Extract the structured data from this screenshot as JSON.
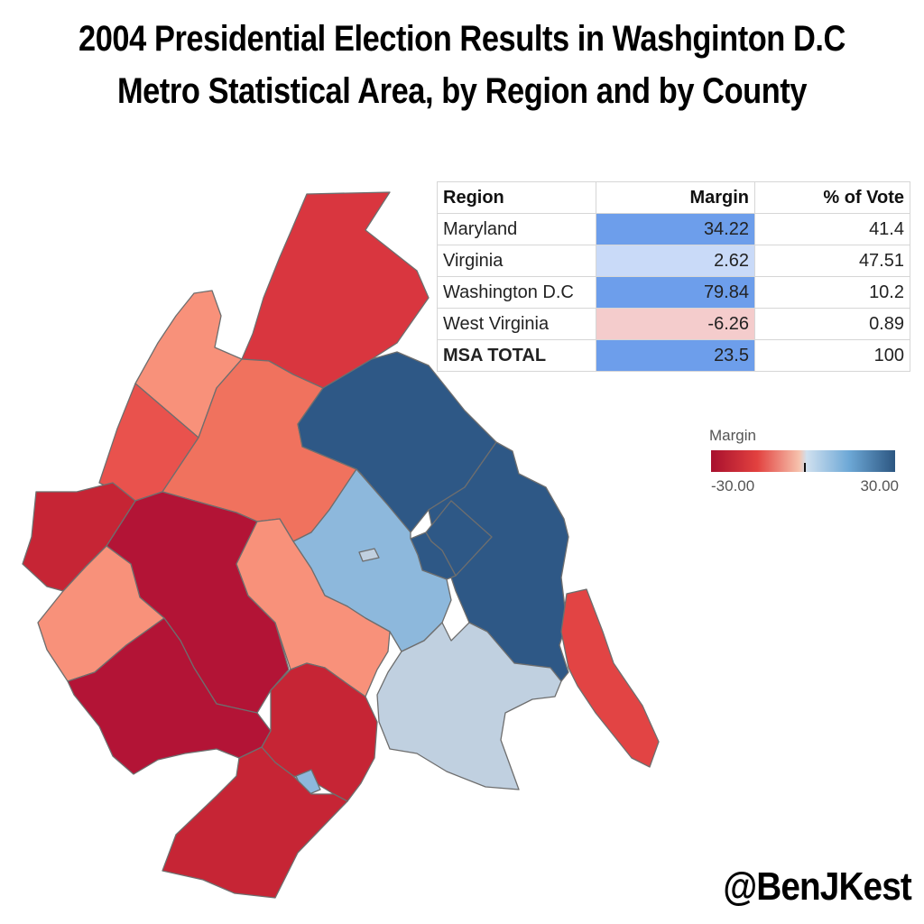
{
  "title": "2004 Presidential Election Results in Washginton D.C Metro Statistical Area, by Region and by County",
  "table": {
    "headers": [
      "Region",
      "Margin",
      "% of Vote"
    ],
    "rows": [
      {
        "region": "Maryland",
        "margin": "34.22",
        "vote": "41.4",
        "color": "#6d9eeb"
      },
      {
        "region": "Virginia",
        "margin": "2.62",
        "vote": "47.51",
        "color": "#c9daf8"
      },
      {
        "region": "Washington D.C",
        "margin": "79.84",
        "vote": "10.2",
        "color": "#6d9eeb"
      },
      {
        "region": "West Virginia",
        "margin": "-6.26",
        "vote": "0.89",
        "color": "#f4cccc"
      },
      {
        "region": "MSA TOTAL",
        "margin": "23.5",
        "vote": "100",
        "color": "#6d9eeb"
      }
    ]
  },
  "legend": {
    "title": "Margin",
    "min_label": "-30.00",
    "max_label": "30.00"
  },
  "credit": "@BenJKest",
  "colors": {
    "strong_republican": "#b31436",
    "republican": "#d9303e",
    "lean_republican": "#ea574f",
    "tilt_republican": "#f0725e",
    "slight_republican": "#f8917a",
    "slight_democrat": "#c0d0e0",
    "lean_democrat": "#8db8dc",
    "strong_democrat": "#2e5886"
  }
}
